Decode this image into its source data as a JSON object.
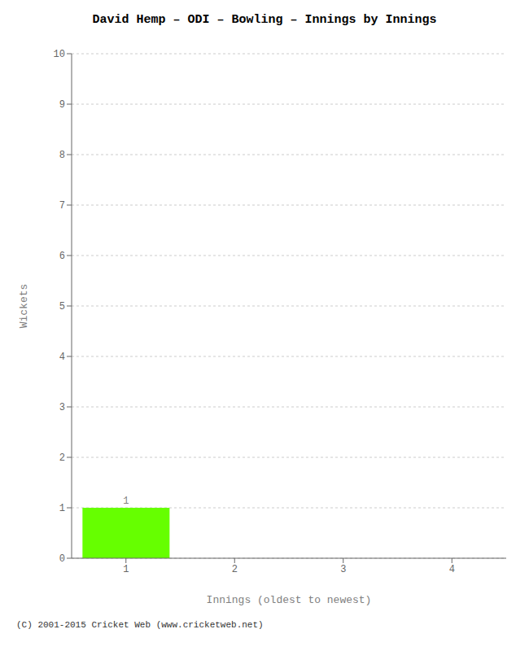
{
  "chart_data": {
    "type": "bar",
    "title": "David Hemp – ODI – Bowling – Innings by Innings",
    "xlabel": "Innings (oldest to newest)",
    "ylabel": "Wickets",
    "categories": [
      1,
      2,
      3,
      4
    ],
    "values": [
      1,
      0,
      0,
      0
    ],
    "color": "#66ff00",
    "ylim": [
      0,
      10
    ],
    "yticks": [
      0,
      1,
      2,
      3,
      4,
      5,
      6,
      7,
      8,
      9,
      10
    ],
    "grid": true,
    "data_labels": true,
    "annotations": [
      "(C) 2001-2015 Cricket Web (www.cricketweb.net)"
    ]
  }
}
